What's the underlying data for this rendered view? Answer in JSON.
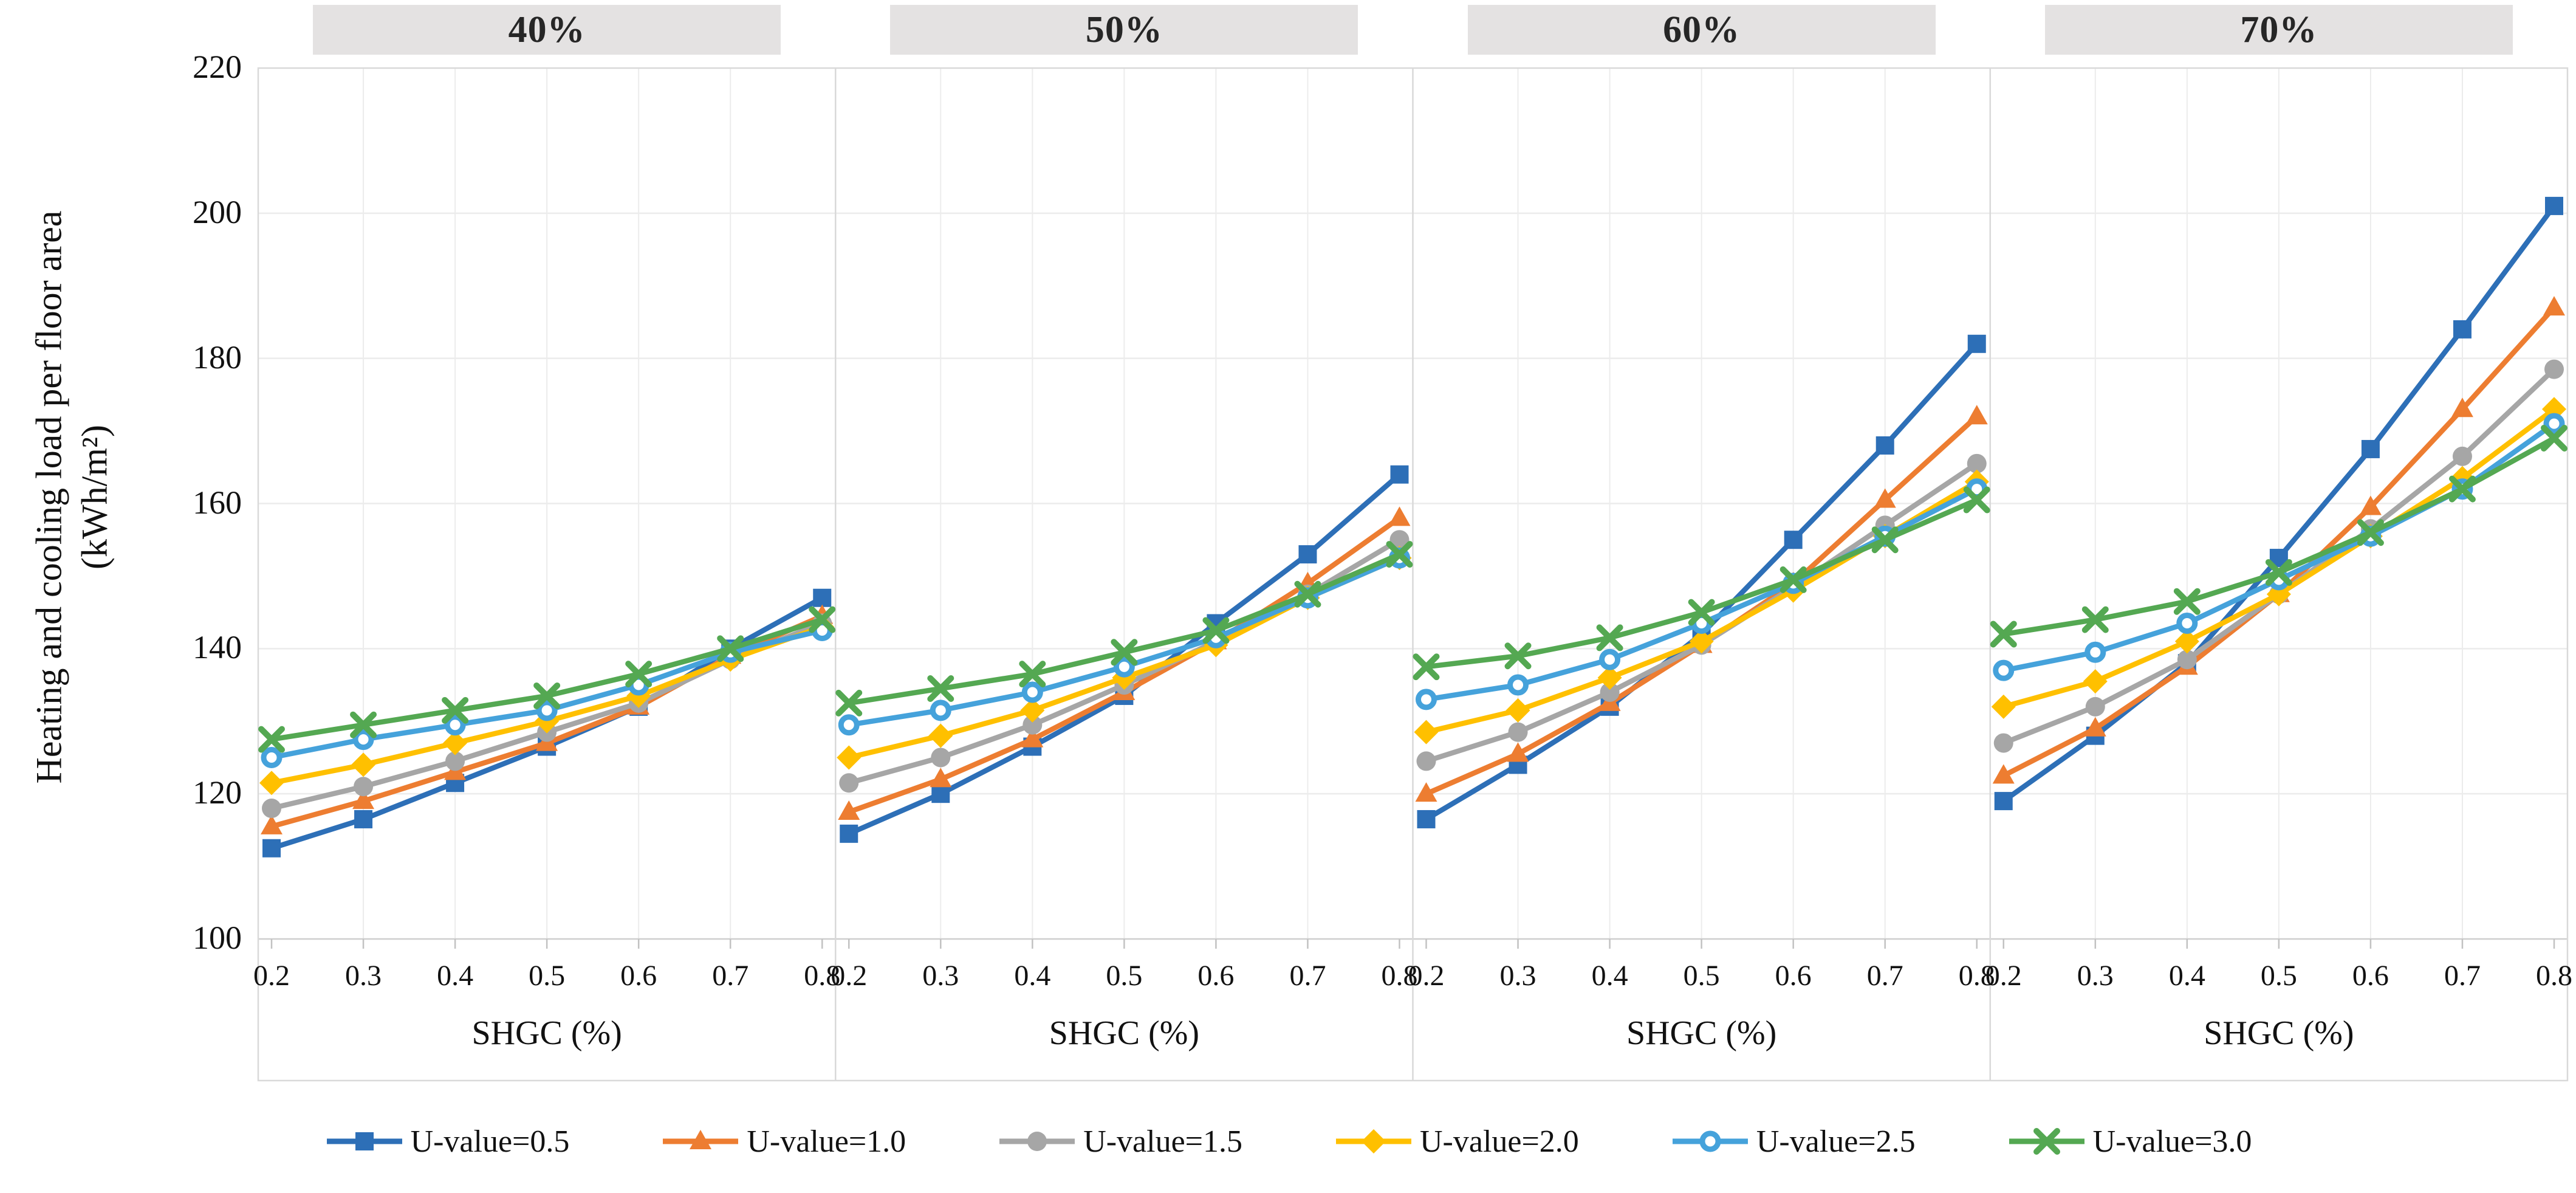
{
  "figure": {
    "y_axis_title_line1": "Heating and cooling load per floor area",
    "y_axis_title_line2": "(kWh/m²)"
  },
  "colors": {
    "grid": "#ececec",
    "border": "#d9d9d9",
    "axis": "#cfcfcf",
    "tick": "#c2c2c2",
    "header_bg": "#e4e2e2"
  },
  "chart_data": {
    "type": "line",
    "x": [
      0.2,
      0.3,
      0.4,
      0.5,
      0.6,
      0.7,
      0.8
    ],
    "x_tick_labels": [
      "0.2",
      "0.3",
      "0.4",
      "0.5",
      "0.6",
      "0.7",
      "0.8"
    ],
    "xlabel": "SHGC (%)",
    "ylabel": "Heating and cooling load per floor area (kWh/m²)",
    "ylim": [
      100,
      220
    ],
    "y_ticks": [
      100,
      120,
      140,
      160,
      180,
      200,
      220
    ],
    "grid": true,
    "legend_position": "bottom",
    "series": [
      {
        "name": "U-value=0.5",
        "color": "#2d6fb7",
        "marker": "square"
      },
      {
        "name": "U-value=1.0",
        "color": "#ed7d31",
        "marker": "triangle"
      },
      {
        "name": "U-value=1.5",
        "color": "#a6a6a6",
        "marker": "circle"
      },
      {
        "name": "U-value=2.0",
        "color": "#ffc000",
        "marker": "diamond"
      },
      {
        "name": "U-value=2.5",
        "color": "#45a2db",
        "marker": "open-circle"
      },
      {
        "name": "U-value=3.0",
        "color": "#54a852",
        "marker": "x"
      }
    ],
    "panels": [
      {
        "label": "40%",
        "values": [
          [
            112.5,
            116.5,
            121.5,
            126.5,
            132,
            140,
            147
          ],
          [
            115.5,
            119,
            123,
            127,
            132,
            139,
            144.5
          ],
          [
            118,
            121,
            124.5,
            128.5,
            132.5,
            138.5,
            143.5
          ],
          [
            121.5,
            124,
            127,
            130,
            133.5,
            138.5,
            143
          ],
          [
            125,
            127.5,
            129.5,
            131.5,
            135,
            139.5,
            142.5
          ],
          [
            127.5,
            129.5,
            131.5,
            133.5,
            136.5,
            140,
            144
          ]
        ]
      },
      {
        "label": "50%",
        "values": [
          [
            114.5,
            120,
            126.5,
            133.5,
            143.5,
            153,
            164
          ],
          [
            117.5,
            122,
            127.5,
            134,
            141,
            149,
            158
          ],
          [
            121.5,
            125,
            129.5,
            135,
            141,
            147.5,
            155
          ],
          [
            125,
            128,
            131.5,
            136,
            140.5,
            147,
            152.5
          ],
          [
            129.5,
            131.5,
            134,
            137.5,
            141.5,
            147,
            152.5
          ],
          [
            132.5,
            134.5,
            136.5,
            139.5,
            142.5,
            147.5,
            153
          ]
        ]
      },
      {
        "label": "60%",
        "values": [
          [
            116.5,
            124,
            132,
            142,
            155,
            168,
            182
          ],
          [
            120,
            125.5,
            132.5,
            140.5,
            149,
            160.5,
            172
          ],
          [
            124.5,
            128.5,
            134,
            140.5,
            148.5,
            157,
            165.5
          ],
          [
            128.5,
            131.5,
            136,
            141,
            148,
            155.5,
            163
          ],
          [
            133,
            135,
            138.5,
            143.5,
            149,
            155.5,
            162
          ],
          [
            137.5,
            139,
            141.5,
            145,
            149.5,
            155,
            160.5
          ]
        ]
      },
      {
        "label": "70%",
        "values": [
          [
            119,
            128,
            138,
            152.5,
            167.5,
            184,
            201
          ],
          [
            122.5,
            129,
            137.5,
            147.5,
            159.5,
            173,
            187
          ],
          [
            127,
            132,
            138.5,
            147.5,
            156.5,
            166.5,
            178.5
          ],
          [
            132,
            135.5,
            141,
            147.5,
            155.5,
            163.5,
            173
          ],
          [
            137,
            139.5,
            143.5,
            149.5,
            155.5,
            162,
            171
          ],
          [
            142,
            144,
            146.5,
            150.5,
            156,
            162,
            169
          ]
        ]
      }
    ]
  }
}
